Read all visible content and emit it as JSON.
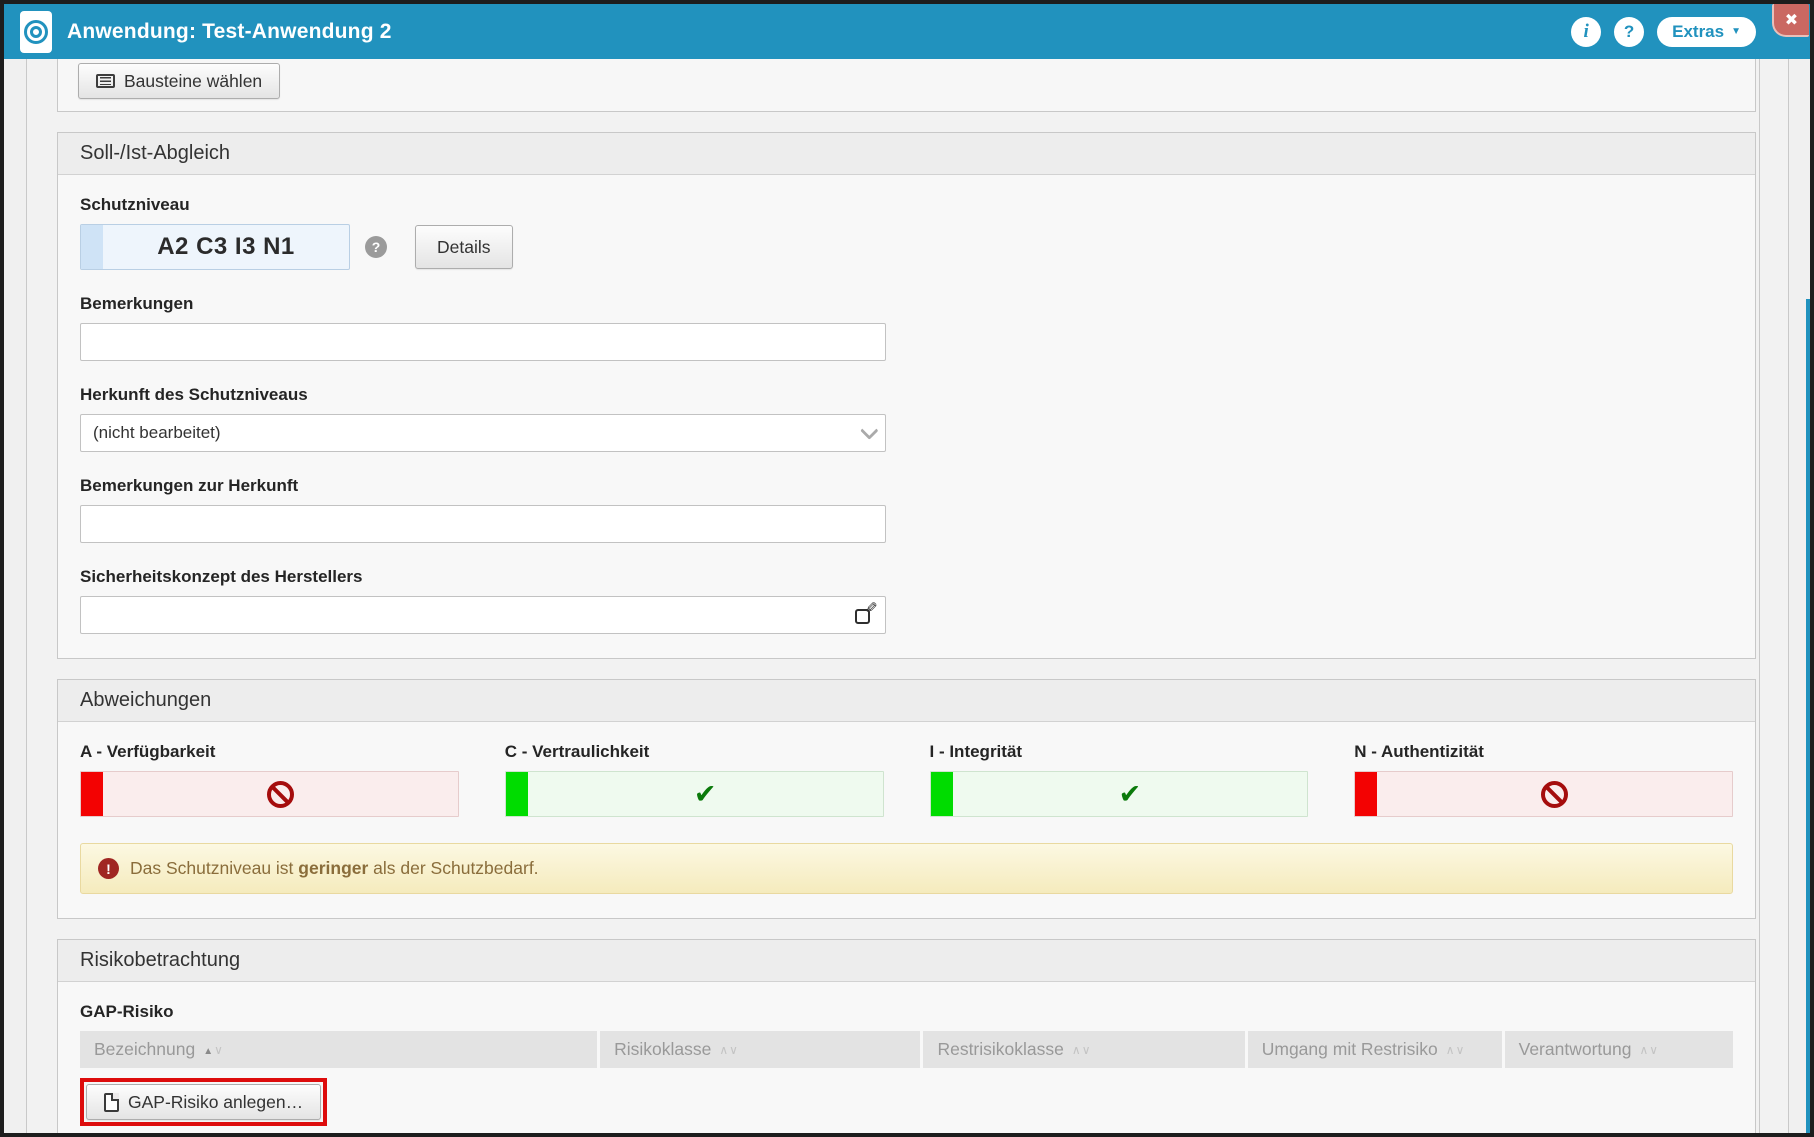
{
  "topbar": {
    "title": "Anwendung: Test-Anwendung 2",
    "extras_label": "Extras"
  },
  "icons": {
    "info": "i",
    "help": "?",
    "close": "✖",
    "extras_caret": "▼",
    "help_circle": "?",
    "pencil": "✎",
    "warning_mark": "!",
    "sort_asc": "▲",
    "sort_up": "∧",
    "sort_down": "∨"
  },
  "toolbar": {
    "bausteine_label": "Bausteine wählen"
  },
  "soll_ist": {
    "title": "Soll-/Ist-Abgleich",
    "schutzniveau_label": "Schutzniveau",
    "schutzniveau_value": "A2 C3 I3 N1",
    "details_label": "Details",
    "bemerkungen_label": "Bemerkungen",
    "bemerkungen_value": "",
    "herkunft_label": "Herkunft des Schutzniveaus",
    "herkunft_value": "(nicht bearbeitet)",
    "bemerkungen_herkunft_label": "Bemerkungen zur Herkunft",
    "bemerkungen_herkunft_value": "",
    "sicherheitskonzept_label": "Sicherheitskonzept des Herstellers",
    "sicherheitskonzept_value": ""
  },
  "abweichungen": {
    "title": "Abweichungen",
    "items": [
      {
        "label": "A - Verfügbarkeit",
        "status": "fail"
      },
      {
        "label": "C - Vertraulichkeit",
        "status": "ok"
      },
      {
        "label": "I - Integrität",
        "status": "ok"
      },
      {
        "label": "N - Authentizität",
        "status": "fail"
      }
    ],
    "warning": {
      "prefix": "Das Schutzniveau ist ",
      "emphasis": "geringer",
      "suffix": " als der Schutzbedarf."
    }
  },
  "risiko": {
    "title": "Risikobetrachtung",
    "gap_label": "GAP-Risiko",
    "table_headers": [
      {
        "label": "Bezeichnung"
      },
      {
        "label": "Risikoklasse"
      },
      {
        "label": "Restrisikoklasse"
      },
      {
        "label": "Umgang mit Restrisiko"
      },
      {
        "label": "Verantwortung"
      }
    ],
    "create_button_label": "GAP-Risiko anlegen…"
  },
  "colors": {
    "topbar_blue": "#2192be",
    "status_red_strip": "#f30202",
    "status_red_bg": "#faeded",
    "status_green_strip": "#00dc00",
    "status_green_bg": "#effaef",
    "warning_text": "#8a6d3b",
    "annotation_red": "#dd0c0c"
  }
}
